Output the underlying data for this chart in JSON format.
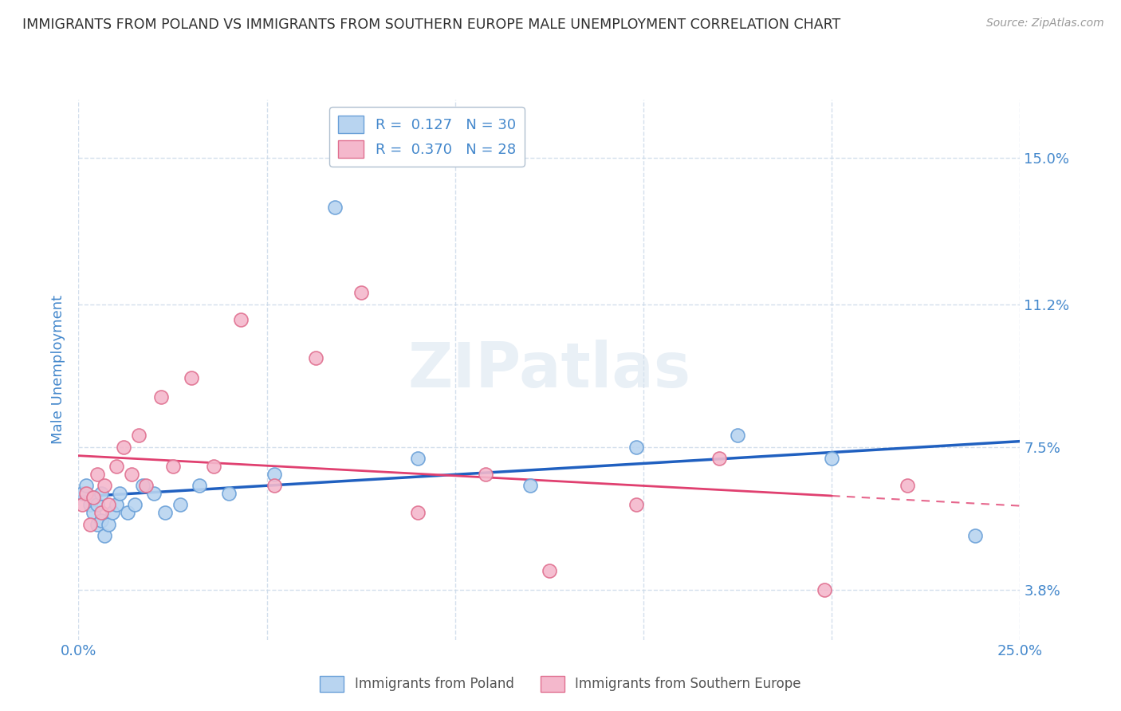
{
  "title": "IMMIGRANTS FROM POLAND VS IMMIGRANTS FROM SOUTHERN EUROPE MALE UNEMPLOYMENT CORRELATION CHART",
  "source": "Source: ZipAtlas.com",
  "ylabel": "Male Unemployment",
  "watermark": "ZIPatlas",
  "xmin": 0.0,
  "xmax": 0.25,
  "ymin": 0.025,
  "ymax": 0.165,
  "yticks": [
    0.038,
    0.075,
    0.112,
    0.15
  ],
  "ytick_labels": [
    "3.8%",
    "7.5%",
    "11.2%",
    "15.0%"
  ],
  "xticks": [
    0.0,
    0.05,
    0.1,
    0.15,
    0.2,
    0.25
  ],
  "xtick_labels": [
    "0.0%",
    "",
    "",
    "",
    "",
    "25.0%"
  ],
  "series1_color": "#b8d4f0",
  "series1_edgecolor": "#6aa0d8",
  "series2_color": "#f4b8cc",
  "series2_edgecolor": "#e07090",
  "trendline1_color": "#2060c0",
  "trendline2_color": "#e04070",
  "title_color": "#303030",
  "axis_color": "#4488cc",
  "grid_color": "#c8d8e8",
  "legend_label1": "R =  0.127   N = 30",
  "legend_label2": "R =  0.370   N = 28",
  "bottom_label1": "Immigrants from Poland",
  "bottom_label2": "Immigrants from Southern Europe",
  "poland_x": [
    0.001,
    0.002,
    0.003,
    0.004,
    0.004,
    0.005,
    0.005,
    0.006,
    0.006,
    0.007,
    0.008,
    0.009,
    0.01,
    0.011,
    0.013,
    0.015,
    0.017,
    0.02,
    0.023,
    0.027,
    0.032,
    0.04,
    0.052,
    0.068,
    0.09,
    0.12,
    0.148,
    0.175,
    0.2,
    0.238
  ],
  "poland_y": [
    0.063,
    0.065,
    0.06,
    0.058,
    0.062,
    0.055,
    0.06,
    0.056,
    0.063,
    0.052,
    0.055,
    0.058,
    0.06,
    0.063,
    0.058,
    0.06,
    0.065,
    0.063,
    0.058,
    0.06,
    0.065,
    0.063,
    0.068,
    0.137,
    0.072,
    0.065,
    0.075,
    0.078,
    0.072,
    0.052
  ],
  "se_x": [
    0.001,
    0.002,
    0.003,
    0.004,
    0.005,
    0.006,
    0.007,
    0.008,
    0.01,
    0.012,
    0.014,
    0.016,
    0.018,
    0.022,
    0.025,
    0.03,
    0.036,
    0.043,
    0.052,
    0.063,
    0.075,
    0.09,
    0.108,
    0.125,
    0.148,
    0.17,
    0.198,
    0.22
  ],
  "se_y": [
    0.06,
    0.063,
    0.055,
    0.062,
    0.068,
    0.058,
    0.065,
    0.06,
    0.07,
    0.075,
    0.068,
    0.078,
    0.065,
    0.088,
    0.07,
    0.093,
    0.07,
    0.108,
    0.065,
    0.098,
    0.115,
    0.058,
    0.068,
    0.043,
    0.06,
    0.072,
    0.038,
    0.065
  ],
  "trendline_x_start": 0.0,
  "trendline_x_end": 0.25,
  "trendline2_solid_end": 0.2
}
